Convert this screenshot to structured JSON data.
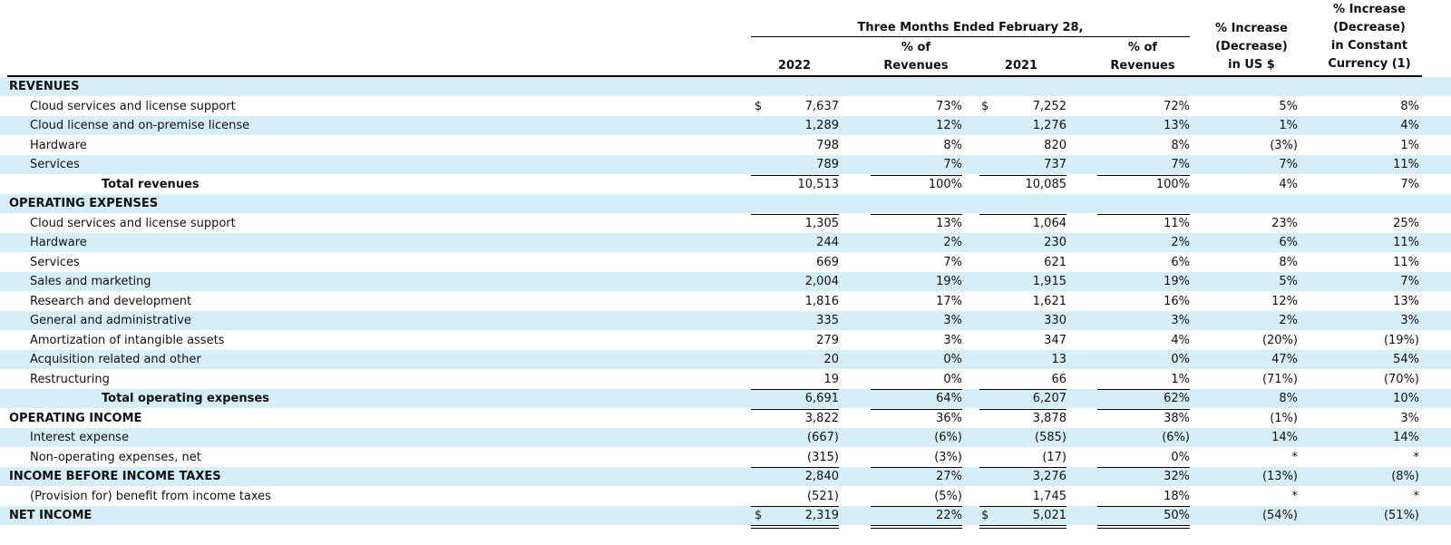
{
  "header": {
    "group_title": "Three Months Ended February 28,",
    "col_2022": "2022",
    "col_pct1": [
      "% of",
      "Revenues"
    ],
    "col_2021": "2021",
    "col_pct2": [
      "% of",
      "Revenues"
    ],
    "col_us": [
      "% Increase",
      "(Decrease)",
      "in US $"
    ],
    "col_cc": [
      "% Increase",
      "(Decrease)",
      "in Constant",
      "Currency (1)"
    ]
  },
  "currency_symbol": "$",
  "rows": [
    {
      "label": "REVENUES",
      "style": "section"
    },
    {
      "label": "Cloud services and license support",
      "style": "item",
      "v2022": "7,637",
      "p2022": "73%",
      "v2021": "7,252",
      "p2021": "72%",
      "us": "5%",
      "cc": "8%",
      "dollar": true
    },
    {
      "label": "Cloud license and on-premise license",
      "style": "item",
      "v2022": "1,289",
      "p2022": "12%",
      "v2021": "1,276",
      "p2021": "13%",
      "us": "1%",
      "cc": "4%"
    },
    {
      "label": "Hardware",
      "style": "item",
      "v2022": "798",
      "p2022": "8%",
      "v2021": "820",
      "p2021": "8%",
      "us": "(3%)",
      "cc": "1%"
    },
    {
      "label": "Services",
      "style": "item",
      "v2022": "789",
      "p2022": "7%",
      "v2021": "737",
      "p2021": "7%",
      "us": "7%",
      "cc": "11%"
    },
    {
      "label": "Total revenues",
      "style": "total",
      "v2022": "10,513",
      "p2022": "100%",
      "v2021": "10,085",
      "p2021": "100%",
      "us": "4%",
      "cc": "7%",
      "rule_top": true
    },
    {
      "label": "OPERATING EXPENSES",
      "style": "section"
    },
    {
      "label": "Cloud services and license support",
      "style": "item",
      "v2022": "1,305",
      "p2022": "13%",
      "v2021": "1,064",
      "p2021": "11%",
      "us": "23%",
      "cc": "25%",
      "rule_top": true
    },
    {
      "label": "Hardware",
      "style": "item",
      "v2022": "244",
      "p2022": "2%",
      "v2021": "230",
      "p2021": "2%",
      "us": "6%",
      "cc": "11%"
    },
    {
      "label": "Services",
      "style": "item",
      "v2022": "669",
      "p2022": "7%",
      "v2021": "621",
      "p2021": "6%",
      "us": "8%",
      "cc": "11%"
    },
    {
      "label": "Sales and marketing",
      "style": "item",
      "v2022": "2,004",
      "p2022": "19%",
      "v2021": "1,915",
      "p2021": "19%",
      "us": "5%",
      "cc": "7%"
    },
    {
      "label": "Research and development",
      "style": "item",
      "v2022": "1,816",
      "p2022": "17%",
      "v2021": "1,621",
      "p2021": "16%",
      "us": "12%",
      "cc": "13%"
    },
    {
      "label": "General and administrative",
      "style": "item",
      "v2022": "335",
      "p2022": "3%",
      "v2021": "330",
      "p2021": "3%",
      "us": "2%",
      "cc": "3%"
    },
    {
      "label": "Amortization of intangible assets",
      "style": "item",
      "v2022": "279",
      "p2022": "3%",
      "v2021": "347",
      "p2021": "4%",
      "us": "(20%)",
      "cc": "(19%)"
    },
    {
      "label": "Acquisition related and other",
      "style": "item",
      "v2022": "20",
      "p2022": "0%",
      "v2021": "13",
      "p2021": "0%",
      "us": "47%",
      "cc": "54%"
    },
    {
      "label": "Restructuring",
      "style": "item",
      "v2022": "19",
      "p2022": "0%",
      "v2021": "66",
      "p2021": "1%",
      "us": "(71%)",
      "cc": "(70%)"
    },
    {
      "label": "Total operating expenses",
      "style": "total",
      "v2022": "6,691",
      "p2022": "64%",
      "v2021": "6,207",
      "p2021": "62%",
      "us": "8%",
      "cc": "10%",
      "rule_top": true
    },
    {
      "label": "OPERATING INCOME",
      "style": "sectionval",
      "v2022": "3,822",
      "p2022": "36%",
      "v2021": "3,878",
      "p2021": "38%",
      "us": "(1%)",
      "cc": "3%",
      "rule_top": true
    },
    {
      "label": "Interest expense",
      "style": "item",
      "v2022": "(667)",
      "p2022": "(6%)",
      "v2021": "(585)",
      "p2021": "(6%)",
      "us": "14%",
      "cc": "14%"
    },
    {
      "label": "Non-operating expenses, net",
      "style": "item",
      "v2022": "(315)",
      "p2022": "(3%)",
      "v2021": "(17)",
      "p2021": "0%",
      "us": "*",
      "cc": "*"
    },
    {
      "label": "INCOME BEFORE INCOME TAXES",
      "style": "sectionval",
      "v2022": "2,840",
      "p2022": "27%",
      "v2021": "3,276",
      "p2021": "32%",
      "us": "(13%)",
      "cc": "(8%)",
      "rule_top": true
    },
    {
      "label": "(Provision for) benefit from income taxes",
      "style": "item",
      "v2022": "(521)",
      "p2022": "(5%)",
      "v2021": "1,745",
      "p2021": "18%",
      "us": "*",
      "cc": "*"
    },
    {
      "label": "NET INCOME",
      "style": "sectionval",
      "v2022": "2,319",
      "p2022": "22%",
      "v2021": "5,021",
      "p2021": "50%",
      "us": "(54%)",
      "cc": "(51%)",
      "rule_top": true,
      "dollar": true,
      "double_under": true
    }
  ]
}
